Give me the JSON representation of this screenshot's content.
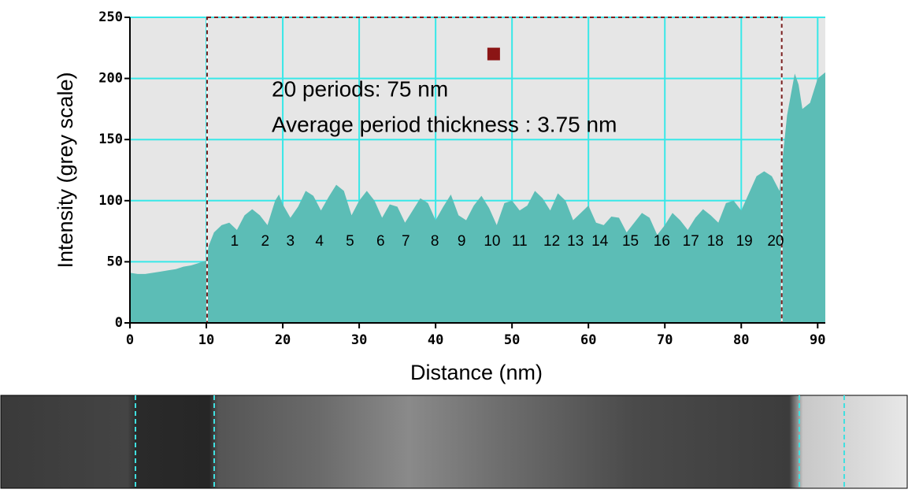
{
  "chart_data": {
    "type": "area",
    "xlabel": "Distance (nm)",
    "ylabel": "Intensity (grey scale)",
    "annotations": [
      "20 periods: 75 nm",
      "Average period thickness : 3.75 nm"
    ],
    "x": [
      0,
      1,
      2,
      3,
      4,
      5,
      6,
      7,
      8,
      9,
      10,
      10.3,
      11,
      12,
      13,
      14,
      15,
      16,
      17,
      18,
      19,
      19.5,
      20,
      21,
      22,
      23,
      24,
      25,
      26,
      27,
      28,
      29,
      30,
      31,
      32,
      33,
      34,
      35,
      36,
      37,
      38,
      39,
      40,
      41,
      42,
      43,
      44,
      45,
      46,
      47,
      48,
      49,
      50,
      51,
      52,
      53,
      54,
      55,
      56,
      57,
      58,
      59,
      60,
      61,
      62,
      63,
      64,
      65,
      66,
      67,
      68,
      69,
      70,
      71,
      72,
      73,
      74,
      75,
      76,
      77,
      78,
      79,
      80,
      81,
      82,
      83,
      84,
      85,
      85.5,
      86,
      87,
      87.5,
      88,
      89,
      90,
      91
    ],
    "values": [
      41,
      40,
      40,
      41,
      42,
      43,
      44,
      46,
      47,
      49,
      51,
      63,
      74,
      80,
      82,
      76,
      88,
      93,
      88,
      80,
      100,
      105,
      97,
      86,
      95,
      108,
      104,
      92,
      103,
      113,
      108,
      88,
      100,
      108,
      100,
      86,
      97,
      95,
      82,
      92,
      102,
      98,
      84,
      95,
      105,
      88,
      84,
      96,
      104,
      94,
      80,
      98,
      100,
      92,
      96,
      108,
      102,
      92,
      106,
      100,
      84,
      90,
      96,
      82,
      80,
      87,
      86,
      74,
      82,
      90,
      86,
      72,
      80,
      90,
      84,
      76,
      86,
      93,
      88,
      82,
      98,
      100,
      92,
      106,
      120,
      124,
      120,
      108,
      140,
      170,
      204,
      195,
      175,
      180,
      200,
      205
    ],
    "color": "#5cbdb6",
    "xlim": [
      0,
      91
    ],
    "ylim": [
      0,
      250
    ],
    "xticks": [
      0,
      10,
      20,
      30,
      40,
      50,
      60,
      70,
      80,
      90
    ],
    "yticks": [
      0,
      50,
      100,
      150,
      200,
      250
    ],
    "grid": true,
    "period_labels": [
      "1",
      "2",
      "3",
      "4",
      "5",
      "6",
      "7",
      "8",
      "9",
      "10",
      "11",
      "12",
      "13",
      "14",
      "15",
      "16",
      "17",
      "18",
      "19",
      "20"
    ],
    "period_label_x": [
      13.7,
      17.7,
      21.0,
      24.8,
      28.8,
      32.8,
      36.1,
      39.9,
      43.4,
      47.4,
      51.0,
      55.2,
      58.3,
      61.5,
      65.5,
      69.6,
      73.4,
      76.6,
      80.4,
      84.5
    ],
    "highlight_range": [
      10.1,
      85.3
    ],
    "marker": {
      "x": 47.6,
      "y": 220,
      "color": "#8b1515"
    }
  }
}
